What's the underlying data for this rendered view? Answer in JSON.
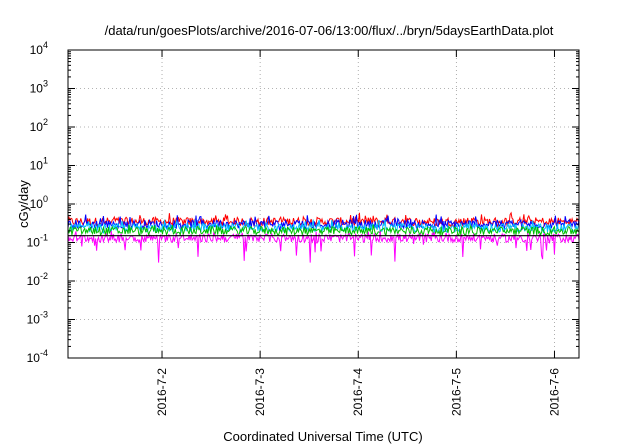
{
  "chart_data": {
    "type": "line",
    "title": "/data/run/goesPlots/archive/2016-07-06/13:00/flux/../bryn/5daysEarthData.plot",
    "xlabel": "Coordinated Universal Time (UTC)",
    "ylabel": "cGy/day",
    "yscale": "log",
    "ylim": [
      0.0001,
      10000
    ],
    "xlim": [
      "2016-07-01T01:00",
      "2016-07-06T06:00"
    ],
    "grid": true,
    "x_ticks": [
      "2016-7-2",
      "2016-7-3",
      "2016-7-4",
      "2016-7-5",
      "2016-7-6"
    ],
    "y_ticks": [
      {
        "base": "10",
        "exp": "-4"
      },
      {
        "base": "10",
        "exp": "-3"
      },
      {
        "base": "10",
        "exp": "-2"
      },
      {
        "base": "10",
        "exp": "-1"
      },
      {
        "base": "10",
        "exp": "0"
      },
      {
        "base": "10",
        "exp": "1"
      },
      {
        "base": "10",
        "exp": "2"
      },
      {
        "base": "10",
        "exp": "3"
      },
      {
        "base": "10",
        "exp": "4"
      }
    ],
    "series": [
      {
        "color": "#ff0000",
        "typical": 0.35,
        "min": 0.25,
        "max": 0.6
      },
      {
        "color": "#0000ff",
        "typical": 0.3,
        "min": 0.2,
        "max": 0.55
      },
      {
        "color": "#00c0ff",
        "typical": 0.24,
        "min": 0.17,
        "max": 0.4
      },
      {
        "color": "#00c000",
        "typical": 0.2,
        "min": 0.15,
        "max": 0.3
      },
      {
        "color": "#ff00ff",
        "typical": 0.13,
        "min": 0.03,
        "max": 0.2
      },
      {
        "color": "#000000",
        "typical": 0.15,
        "min": 0.15,
        "max": 0.15
      }
    ]
  }
}
